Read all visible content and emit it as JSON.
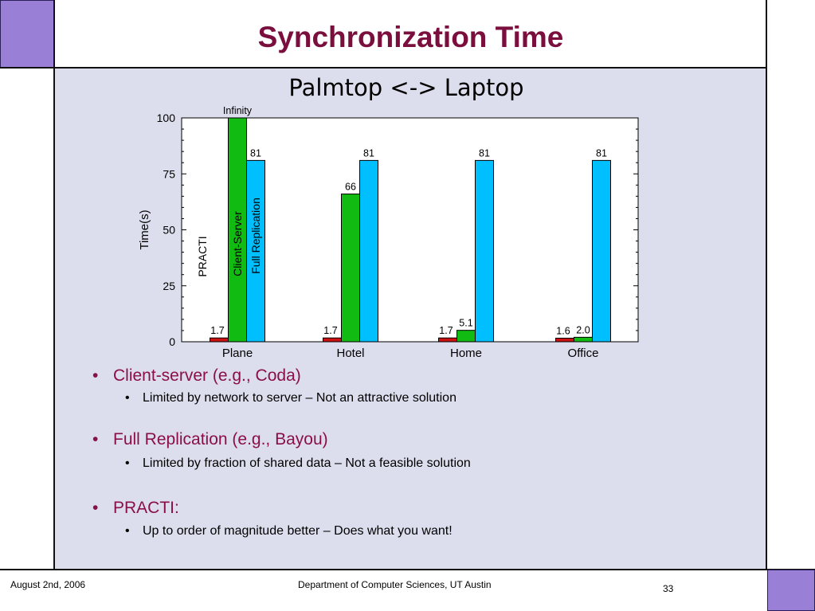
{
  "slide": {
    "title": "Synchronization Time",
    "bullets": [
      {
        "text": "Client-server (e.g., Coda)",
        "sub": "Limited by network to server – Not an attractive solution"
      },
      {
        "text": "Full Replication (e.g., Bayou)",
        "sub": "Limited by fraction of shared data – Not a feasible solution"
      },
      {
        "text": "PRACTI:",
        "sub": "Up to order of magnitude better – Does what you want!"
      }
    ],
    "bullet_glyph": "•",
    "footer": {
      "date": "August 2nd, 2006",
      "dept": "Department of Computer Sciences, UT Austin",
      "page": "33"
    }
  },
  "chart_data": {
    "type": "bar",
    "title": "Palmtop <-> Laptop",
    "ylabel": "Time(s)",
    "xlabel": "",
    "ylim": [
      0,
      100
    ],
    "yticks": [
      "0",
      "25",
      "50",
      "75",
      "100"
    ],
    "categories": [
      "Plane",
      "Hotel",
      "Home",
      "Office"
    ],
    "series": [
      {
        "name": "PRACTI",
        "color": "#cc1111",
        "values": [
          1.7,
          1.7,
          1.7,
          1.6
        ],
        "labels": [
          "1.7",
          "1.7",
          "1.7",
          "1.6"
        ]
      },
      {
        "name": "Client-Server",
        "color": "#11bb11",
        "values": [
          100,
          66,
          5.1,
          2.0
        ],
        "labels": [
          "Infinity",
          "66",
          "5.1",
          "2.0"
        ]
      },
      {
        "name": "Full Replication",
        "color": "#00bfff",
        "values": [
          81,
          81,
          81,
          81
        ],
        "labels": [
          "81",
          "81",
          "81",
          "81"
        ]
      }
    ],
    "grid": false,
    "legend": "rotated labels inside Plane group"
  }
}
